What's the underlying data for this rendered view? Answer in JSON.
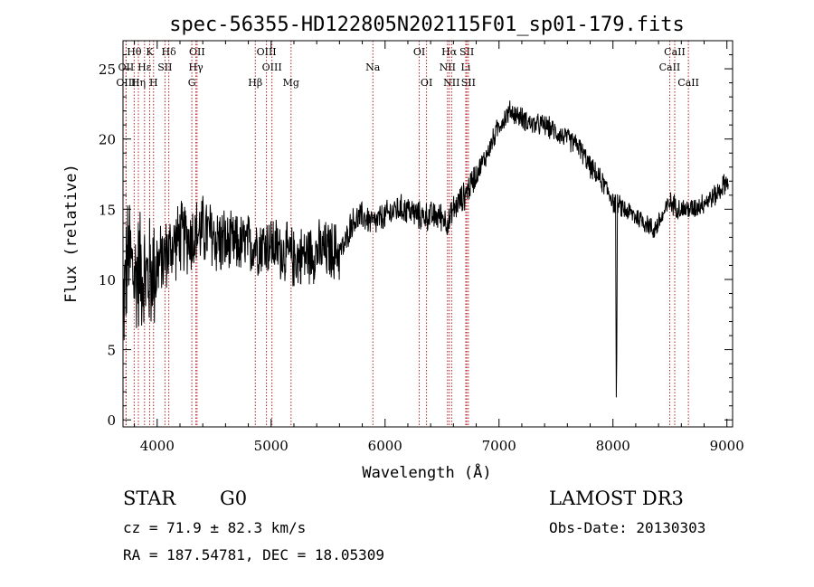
{
  "chart_data": {
    "type": "line",
    "title": "spec-56355-HD122805N202115F01_sp01-179.fits",
    "xlabel": "Wavelength (Å)",
    "ylabel": "Flux (relative)",
    "xlim": [
      3700,
      9050
    ],
    "ylim": [
      -0.5,
      27
    ],
    "xticks": [
      4000,
      5000,
      6000,
      7000,
      8000,
      9000
    ],
    "yticks": [
      0,
      5,
      10,
      15,
      20,
      25
    ],
    "series": [
      {
        "name": "flux",
        "color": "#000000",
        "anchors": {
          "x": [
            3700,
            3750,
            3800,
            3850,
            3900,
            4000,
            4100,
            4200,
            4300,
            4400,
            4600,
            4800,
            5000,
            5200,
            5400,
            5600,
            5650,
            5700,
            5800,
            5900,
            6000,
            6100,
            6200,
            6300,
            6400,
            6500,
            6560,
            6600,
            6700,
            6800,
            6900,
            7000,
            7100,
            7200,
            7300,
            7400,
            7500,
            7600,
            7700,
            7800,
            7900,
            7980,
            8000,
            8100,
            8200,
            8300,
            8350,
            8400,
            8500,
            8600,
            8700,
            8800,
            8900,
            9000
          ],
          "y": [
            8,
            12,
            10,
            11,
            10,
            11,
            12,
            13,
            13,
            13.5,
            12.5,
            12.5,
            12.5,
            11.5,
            12,
            12,
            12.5,
            14,
            14.5,
            14,
            14.5,
            15,
            15,
            14.5,
            14.5,
            14.5,
            14,
            15,
            16,
            17.5,
            19,
            21,
            22,
            21.5,
            21,
            21,
            20.5,
            20,
            19.5,
            18,
            17,
            16,
            15.5,
            15,
            14.5,
            14,
            13.5,
            14,
            15.5,
            15,
            15,
            15.5,
            16,
            17
          ]
        },
        "noise_amplitude_ranges": [
          {
            "from": 3700,
            "to": 4000,
            "amp": 5
          },
          {
            "from": 4000,
            "to": 4600,
            "amp": 3
          },
          {
            "from": 4600,
            "to": 5600,
            "amp": 2.5
          },
          {
            "from": 5600,
            "to": 6800,
            "amp": 1.2
          },
          {
            "from": 6800,
            "to": 9050,
            "amp": 0.9
          }
        ],
        "features": [
          {
            "wavelength": 8030,
            "depth_to": 0.8
          },
          {
            "wavelength": 8033,
            "depth_to": 4
          }
        ]
      }
    ],
    "spectral_lines": [
      {
        "label": "Hθ",
        "wavelength": 3798,
        "row": 1
      },
      {
        "label": "K",
        "wavelength": 3934,
        "row": 1
      },
      {
        "label": "Hδ",
        "wavelength": 4102,
        "row": 1
      },
      {
        "label": "OII",
        "wavelength": 4350,
        "row": 1
      },
      {
        "label": "OIII",
        "wavelength": 4959,
        "row": 1
      },
      {
        "label": "OI",
        "wavelength": 6300,
        "row": 1
      },
      {
        "label": "Hα",
        "wavelength": 6563,
        "row": 1
      },
      {
        "label": "SII",
        "wavelength": 6717,
        "row": 1
      },
      {
        "label": "CaII",
        "wavelength": 8542,
        "row": 1
      },
      {
        "label": "OII",
        "wavelength": 3727,
        "row": 2
      },
      {
        "label": "Hε",
        "wavelength": 3889,
        "row": 2
      },
      {
        "label": "SII",
        "wavelength": 4068,
        "row": 2
      },
      {
        "label": "Hγ",
        "wavelength": 4340,
        "row": 2
      },
      {
        "label": "OIII",
        "wavelength": 5007,
        "row": 2
      },
      {
        "label": "Na",
        "wavelength": 5893,
        "row": 2
      },
      {
        "label": "NII",
        "wavelength": 6548,
        "row": 2
      },
      {
        "label": "Li",
        "wavelength": 6708,
        "row": 2
      },
      {
        "label": "CaII",
        "wavelength": 8498,
        "row": 2
      },
      {
        "label": "OIII",
        "wavelength": 3727,
        "row": 3
      },
      {
        "label": "Hη",
        "wavelength": 3835,
        "row": 3
      },
      {
        "label": "H",
        "wavelength": 3968,
        "row": 3
      },
      {
        "label": "G",
        "wavelength": 4304,
        "row": 3
      },
      {
        "label": "Hβ",
        "wavelength": 4861,
        "row": 3
      },
      {
        "label": "Mg",
        "wavelength": 5175,
        "row": 3
      },
      {
        "label": "OI",
        "wavelength": 6364,
        "row": 3
      },
      {
        "label": "NII",
        "wavelength": 6584,
        "row": 3
      },
      {
        "label": "SII",
        "wavelength": 6731,
        "row": 3
      },
      {
        "label": "CaII",
        "wavelength": 8662,
        "row": 3
      }
    ],
    "line_color": "#b22222"
  },
  "info": {
    "object_class": "STAR",
    "subclass": "G0",
    "survey": "LAMOST DR3",
    "redshift": "cz = 71.9 ± 82.3 km/s",
    "obs_date": "Obs-Date: 20130303",
    "coords": "RA = 187.54781, DEC =  18.05309"
  }
}
